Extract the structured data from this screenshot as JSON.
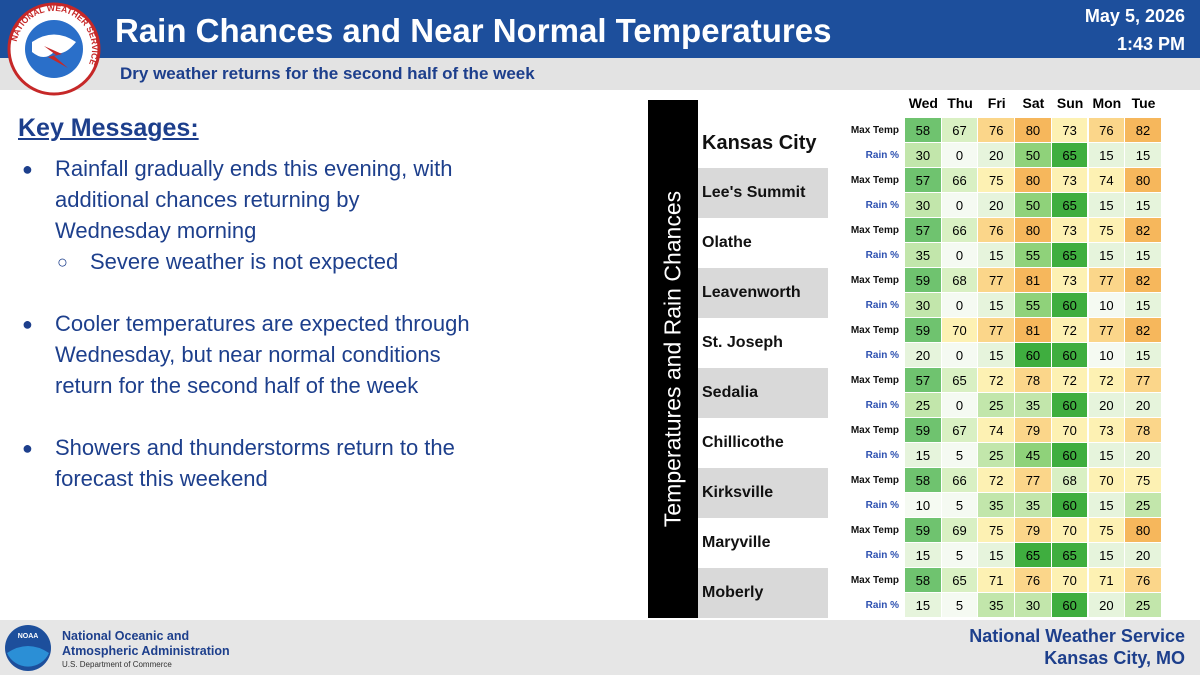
{
  "header": {
    "title": "Rain Chances and Near Normal Temperatures",
    "subtitle": "Dry weather returns for the second half of the week",
    "date": "May 5, 2026",
    "time": "1:43 PM"
  },
  "logo": {
    "text": "NATIONAL WEATHER SERVICE"
  },
  "key_messages": {
    "heading": "Key Messages:",
    "bullets": [
      {
        "lines": [
          "Rainfall gradually ends this evening, with",
          "additional chances returning by",
          "Wednesday morning"
        ],
        "sub": [
          "Severe weather is not expected"
        ]
      },
      {
        "lines": [
          "Cooler temperatures are expected through",
          "Wednesday, but near normal conditions",
          "return for the second half of the week"
        ],
        "sub": []
      },
      {
        "lines": [
          "Showers and thunderstorms return to the",
          "forecast this weekend"
        ],
        "sub": []
      }
    ]
  },
  "table": {
    "side_label": "Temperatures and Rain Chances",
    "days": [
      "Wed",
      "Thu",
      "Fri",
      "Sat",
      "Sun",
      "Mon",
      "Tue"
    ],
    "row_labels": [
      "Max Temp",
      "Rain %"
    ],
    "cities": [
      {
        "name": "Kansas City",
        "max_temp": [
          58,
          67,
          76,
          80,
          73,
          76,
          82
        ],
        "rain": [
          30,
          0,
          20,
          50,
          65,
          15,
          15
        ]
      },
      {
        "name": "Lee's Summit",
        "max_temp": [
          57,
          66,
          75,
          80,
          73,
          74,
          80
        ],
        "rain": [
          30,
          0,
          20,
          50,
          65,
          15,
          15
        ]
      },
      {
        "name": "Olathe",
        "max_temp": [
          57,
          66,
          76,
          80,
          73,
          75,
          82
        ],
        "rain": [
          35,
          0,
          15,
          55,
          65,
          15,
          15
        ]
      },
      {
        "name": "Leavenworth",
        "max_temp": [
          59,
          68,
          77,
          81,
          73,
          77,
          82
        ],
        "rain": [
          30,
          0,
          15,
          55,
          60,
          10,
          15
        ]
      },
      {
        "name": "St. Joseph",
        "max_temp": [
          59,
          70,
          77,
          81,
          72,
          77,
          82
        ],
        "rain": [
          20,
          0,
          15,
          60,
          60,
          10,
          15
        ]
      },
      {
        "name": "Sedalia",
        "max_temp": [
          57,
          65,
          72,
          78,
          72,
          72,
          77
        ],
        "rain": [
          25,
          0,
          25,
          35,
          60,
          20,
          20
        ]
      },
      {
        "name": "Chillicothe",
        "max_temp": [
          59,
          67,
          74,
          79,
          70,
          73,
          78
        ],
        "rain": [
          15,
          5,
          25,
          45,
          60,
          15,
          20
        ]
      },
      {
        "name": "Kirksville",
        "max_temp": [
          58,
          66,
          72,
          77,
          68,
          70,
          75
        ],
        "rain": [
          10,
          5,
          35,
          35,
          60,
          15,
          25
        ]
      },
      {
        "name": "Maryville",
        "max_temp": [
          59,
          69,
          75,
          79,
          70,
          75,
          80
        ],
        "rain": [
          15,
          5,
          15,
          65,
          65,
          15,
          20
        ]
      },
      {
        "name": "Moberly",
        "max_temp": [
          58,
          65,
          71,
          76,
          70,
          71,
          76
        ],
        "rain": [
          15,
          5,
          35,
          30,
          60,
          20,
          25
        ]
      }
    ]
  },
  "footer": {
    "noaa_logo": "NOAA",
    "noaa_line1": "National Oceanic and",
    "noaa_line2": "Atmospheric Administration",
    "noaa_dept": "U.S. Department of Commerce",
    "nws_name": "National Weather Service",
    "nws_office": "Kansas City, MO"
  }
}
